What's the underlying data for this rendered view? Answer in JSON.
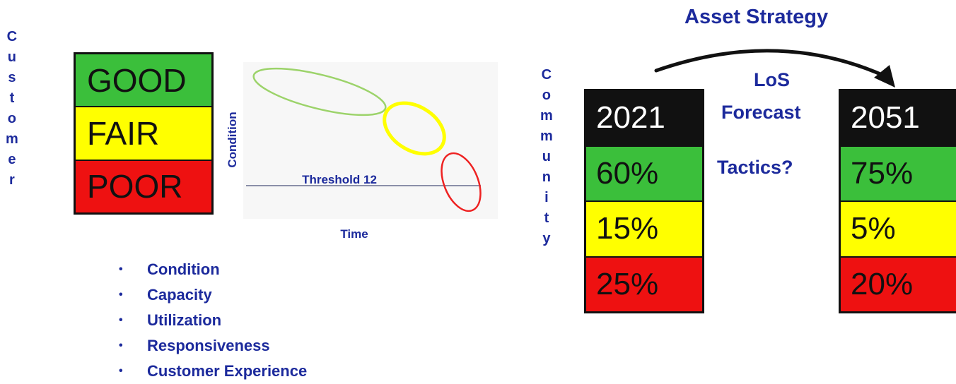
{
  "customer_label": [
    "C",
    "u",
    "s",
    "t",
    "o",
    "m",
    "e",
    "r"
  ],
  "community_label": [
    "C",
    "o",
    "m",
    "m",
    "u",
    "n",
    "i",
    "t",
    "y"
  ],
  "rating_box": {
    "good": "GOOD",
    "fair": "FAIR",
    "poor": "POOR"
  },
  "condition_chart": {
    "y_axis_label": "Condition",
    "x_axis_label": "Time",
    "threshold_label": "Threshold 12"
  },
  "bullets": [
    "Condition",
    "Capacity",
    "Utilization",
    "Responsiveness",
    "Customer Experience"
  ],
  "asset_strategy": {
    "title": "Asset Strategy",
    "los": "LoS",
    "forecast": "Forecast",
    "tactics": "Tactics?"
  },
  "year_2021": {
    "year": "2021",
    "good": "60%",
    "fair": "15%",
    "poor": "25%"
  },
  "year_2051": {
    "year": "2051",
    "good": "75%",
    "fair": "5%",
    "poor": "20%"
  },
  "colors": {
    "good": "#3bbf3b",
    "fair": "#ffff00",
    "poor": "#ee1111",
    "header": "#111111",
    "text_blue": "#1c2a9c"
  }
}
